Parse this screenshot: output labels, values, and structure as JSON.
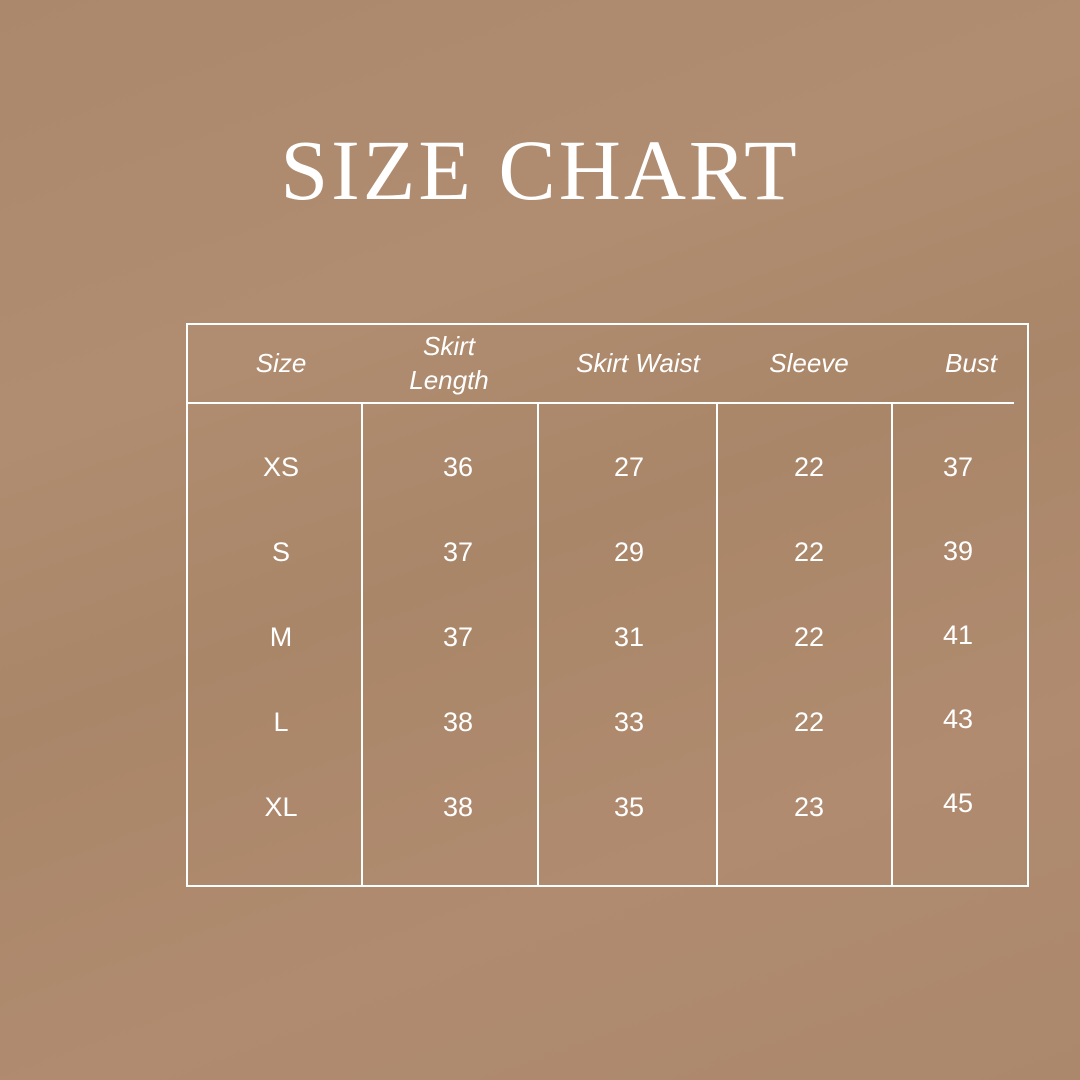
{
  "title": "SIZE CHART",
  "table": {
    "headers": [
      "Size",
      "Skirt Length",
      "Skirt Waist",
      "Sleeve",
      "Bust"
    ],
    "rows": [
      [
        "XS",
        "36",
        "27",
        "22",
        "37"
      ],
      [
        "S",
        "37",
        "29",
        "22",
        "39"
      ],
      [
        "M",
        "37",
        "31",
        "22",
        "41"
      ],
      [
        "L",
        "38",
        "33",
        "22",
        "43"
      ],
      [
        "XL",
        "38",
        "35",
        "23",
        "45"
      ]
    ]
  },
  "colors": {
    "background": "#ad896d",
    "foreground": "#ffffff"
  }
}
